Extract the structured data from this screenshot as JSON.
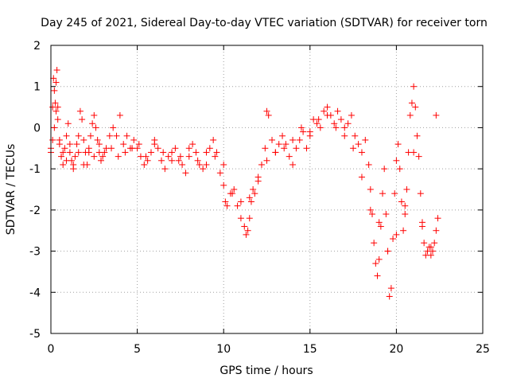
{
  "chart_data": {
    "type": "scatter",
    "title": "Day 245 of 2021, Sidereal Day-to-day VTEC variation (SDTVAR) for receiver torn",
    "xlabel": "GPS time / hours",
    "ylabel": "SDTVAR / TECUs",
    "xlim": [
      0,
      25
    ],
    "ylim": [
      -5,
      2
    ],
    "xticks": [
      0,
      5,
      10,
      15,
      20,
      25
    ],
    "yticks": [
      -5,
      -4,
      -3,
      -2,
      -1,
      0,
      1,
      2
    ],
    "grid": true,
    "marker": "plus",
    "color": "#ff0000",
    "series": [
      {
        "name": "SDTVAR",
        "x": [
          0.0,
          0.1,
          0.15,
          0.2,
          0.25,
          0.3,
          0.35,
          0.4,
          0.5,
          0.6,
          0.7,
          0.8,
          0.9,
          1.0,
          1.1,
          1.2,
          1.3,
          1.4,
          1.5,
          1.6,
          1.7,
          1.8,
          1.9,
          2.0,
          2.1,
          2.2,
          2.3,
          2.4,
          2.5,
          2.6,
          2.7,
          2.8,
          2.9,
          3.0,
          3.2,
          3.4,
          3.6,
          3.8,
          4.0,
          4.2,
          4.4,
          4.6,
          4.8,
          5.0,
          5.2,
          5.4,
          5.6,
          5.8,
          6.0,
          6.2,
          6.4,
          6.6,
          6.8,
          7.0,
          7.2,
          7.4,
          7.6,
          7.8,
          8.0,
          8.2,
          8.4,
          8.6,
          8.8,
          9.0,
          9.2,
          9.4,
          9.6,
          9.8,
          10.0,
          10.1,
          10.2,
          10.4,
          10.6,
          10.8,
          11.0,
          11.2,
          11.3,
          11.4,
          11.5,
          11.6,
          11.7,
          11.8,
          12.0,
          12.2,
          12.4,
          12.5,
          12.6,
          12.8,
          13.0,
          13.2,
          13.4,
          13.6,
          13.8,
          14.0,
          14.2,
          14.4,
          14.6,
          14.8,
          15.0,
          15.2,
          15.4,
          15.6,
          15.8,
          16.0,
          16.2,
          16.4,
          16.6,
          16.8,
          17.0,
          17.2,
          17.4,
          17.6,
          17.8,
          18.0,
          18.2,
          18.4,
          18.5,
          18.6,
          18.7,
          18.8,
          18.9,
          19.0,
          19.1,
          19.2,
          19.3,
          19.4,
          19.5,
          19.6,
          19.7,
          19.8,
          19.9,
          20.0,
          20.1,
          20.2,
          20.3,
          20.4,
          20.5,
          20.6,
          20.7,
          20.8,
          20.9,
          21.0,
          21.1,
          21.2,
          21.3,
          21.4,
          21.5,
          21.6,
          21.7,
          21.8,
          21.9,
          22.0,
          22.1,
          22.2,
          22.3,
          22.4,
          0.0,
          0.1,
          0.2,
          0.3,
          0.4,
          0.5,
          0.7,
          0.9,
          1.1,
          1.3,
          1.6,
          1.9,
          2.2,
          2.5,
          2.8,
          3.1,
          3.5,
          3.9,
          4.3,
          4.7,
          5.1,
          5.5,
          6.0,
          6.5,
          7.0,
          7.5,
          8.0,
          8.5,
          9.0,
          9.5,
          10.0,
          10.5,
          11.0,
          11.5,
          12.0,
          12.5,
          13.0,
          13.5,
          14.0,
          14.5,
          15.0,
          15.5,
          16.0,
          16.5,
          17.0,
          17.5,
          18.0,
          18.5,
          19.0,
          19.5,
          20.0,
          20.5,
          21.0,
          21.5,
          22.0,
          22.3
        ],
        "y": [
          -0.5,
          0.5,
          1.2,
          0.9,
          0.6,
          1.1,
          1.4,
          0.5,
          -0.3,
          -0.7,
          -0.9,
          -0.5,
          -0.2,
          0.1,
          -0.4,
          -0.8,
          -1.0,
          -0.7,
          -0.4,
          -0.2,
          0.4,
          0.2,
          -0.3,
          -0.6,
          -0.9,
          -0.6,
          -0.2,
          0.1,
          0.3,
          0.0,
          -0.3,
          -0.6,
          -0.8,
          -0.7,
          -0.5,
          -0.2,
          0.0,
          -0.2,
          0.3,
          -0.4,
          -0.2,
          -0.5,
          -0.3,
          -0.5,
          -0.7,
          -0.9,
          -0.8,
          -0.6,
          -0.3,
          -0.5,
          -0.8,
          -1.0,
          -0.7,
          -0.6,
          -0.5,
          -0.8,
          -0.9,
          -1.1,
          -0.7,
          -0.4,
          -0.6,
          -0.9,
          -1.0,
          -0.9,
          -0.5,
          -0.3,
          -0.6,
          -1.1,
          -1.4,
          -1.8,
          -1.9,
          -1.6,
          -1.5,
          -1.9,
          -2.2,
          -2.4,
          -2.6,
          -2.5,
          -2.2,
          -1.8,
          -1.5,
          -1.6,
          -1.3,
          -0.9,
          -0.5,
          0.4,
          0.3,
          -0.3,
          -0.6,
          -0.4,
          -0.2,
          -0.4,
          -0.7,
          -0.9,
          -0.5,
          -0.3,
          -0.1,
          -0.5,
          -0.2,
          0.2,
          0.1,
          0.0,
          0.4,
          0.5,
          0.3,
          0.1,
          0.4,
          0.2,
          0.0,
          0.1,
          0.3,
          -0.2,
          -0.4,
          -0.6,
          -0.3,
          -0.9,
          -1.5,
          -2.1,
          -2.8,
          -3.3,
          -3.6,
          -3.2,
          -2.4,
          -1.6,
          -1.0,
          -2.1,
          -3.0,
          -4.1,
          -3.9,
          -2.7,
          -1.6,
          -0.8,
          -0.4,
          -1.0,
          -1.8,
          -2.5,
          -2.1,
          -1.5,
          -0.6,
          0.3,
          0.6,
          1.0,
          0.5,
          -0.2,
          -0.7,
          -1.6,
          -2.3,
          -2.8,
          -3.1,
          -3.0,
          -2.9,
          -3.1,
          -3.0,
          -2.8,
          -2.5,
          -2.2,
          -0.6,
          -0.3,
          0.0,
          0.4,
          0.2,
          -0.4,
          -0.6,
          -0.8,
          -0.6,
          -0.9,
          -0.6,
          -0.9,
          -0.5,
          -0.7,
          -0.4,
          -0.6,
          -0.5,
          -0.7,
          -0.6,
          -0.5,
          -0.4,
          -0.7,
          -0.4,
          -0.6,
          -0.8,
          -0.7,
          -0.5,
          -0.8,
          -0.6,
          -0.7,
          -0.9,
          -1.6,
          -1.8,
          -1.7,
          -1.2,
          -0.8,
          -0.6,
          -0.5,
          -0.3,
          0.0,
          -0.1,
          0.2,
          0.3,
          0.0,
          -0.2,
          -0.5,
          -1.2,
          -2.0,
          -2.3,
          -3.0,
          -2.6,
          -1.9,
          -0.6,
          -2.4,
          -2.9,
          0.3
        ]
      }
    ]
  }
}
